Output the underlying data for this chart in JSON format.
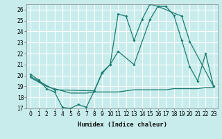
{
  "title": "",
  "xlabel": "Humidex (Indice chaleur)",
  "ylabel": "",
  "bg_color": "#c8ecec",
  "grid_color": "#ffffff",
  "line_color": "#1a7a6e",
  "xlim": [
    -0.5,
    23.5
  ],
  "ylim": [
    17,
    26.5
  ],
  "yticks": [
    17,
    18,
    19,
    20,
    21,
    22,
    23,
    24,
    25,
    26
  ],
  "xticks": [
    0,
    1,
    2,
    3,
    4,
    5,
    6,
    7,
    8,
    9,
    10,
    11,
    12,
    13,
    14,
    15,
    16,
    17,
    18,
    19,
    20,
    21,
    22,
    23
  ],
  "line1_x": [
    0,
    1,
    2,
    3,
    4,
    5,
    6,
    7,
    8,
    9,
    10,
    11,
    12,
    13,
    14,
    15,
    16,
    17,
    18,
    19,
    20,
    21,
    22,
    23
  ],
  "line1_y": [
    20.1,
    19.6,
    18.8,
    18.5,
    17.1,
    17.0,
    17.35,
    17.1,
    18.6,
    20.3,
    21.0,
    25.6,
    25.4,
    23.2,
    25.1,
    26.5,
    26.3,
    26.3,
    25.5,
    23.2,
    20.8,
    19.5,
    22.0,
    19.0
  ],
  "line2_x": [
    0,
    1,
    2,
    3,
    4,
    5,
    6,
    7,
    8,
    9,
    10,
    11,
    12,
    13,
    14,
    15,
    16,
    17,
    18,
    19,
    20,
    21,
    22,
    23
  ],
  "line2_y": [
    19.8,
    19.4,
    19.0,
    18.8,
    18.6,
    18.4,
    18.4,
    18.4,
    18.5,
    18.5,
    18.5,
    18.5,
    18.6,
    18.7,
    18.7,
    18.7,
    18.7,
    18.7,
    18.8,
    18.8,
    18.8,
    18.8,
    18.9,
    18.9
  ],
  "line3_x": [
    0,
    1,
    3,
    8,
    9,
    10,
    11,
    13,
    15,
    16,
    19,
    20,
    23
  ],
  "line3_y": [
    19.9,
    19.5,
    18.7,
    18.6,
    20.2,
    21.0,
    22.2,
    21.0,
    25.1,
    26.3,
    25.4,
    23.1,
    19.0
  ]
}
